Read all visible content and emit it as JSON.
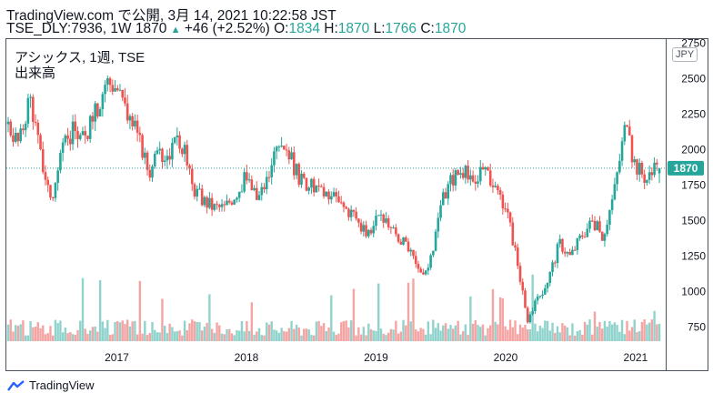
{
  "header": {
    "line1": "TradingView.com で公開, 3月 14, 2021 10:22:58 JST",
    "symbol": "TSE_DLY:7936, 1W",
    "last": "1870",
    "arrow": "▲",
    "change": "+46 (+2.52%)",
    "o_label": "O:",
    "o_value": "1834",
    "h_label": "H:",
    "h_value": "1870",
    "l_label": "L:",
    "l_value": "1766",
    "c_label": "C:",
    "c_value": "1870"
  },
  "legend": {
    "title": "アシックス, 1週, TSE",
    "volume_label": "出来高"
  },
  "currency": "JPY",
  "footer": {
    "brand": "TradingView"
  },
  "colors": {
    "up": "#26a69a",
    "down": "#ef5350",
    "vol_up": "#8fd3cc",
    "vol_down": "#f4a4a3",
    "price_line": "#26a69a"
  },
  "chart_data": {
    "type": "candlestick",
    "y_axis": {
      "ticks": [
        750,
        1000,
        1250,
        1500,
        1750,
        2000,
        2250,
        2500,
        2750
      ],
      "ylim": [
        600,
        2780
      ],
      "position": "right"
    },
    "x_axis": {
      "ticks": [
        "2017",
        "2018",
        "2019",
        "2020",
        "2021"
      ]
    },
    "last_price": 1870,
    "series": [
      {
        "name": "price",
        "anchors": [
          [
            "2016-03-01",
            2180
          ],
          [
            "2016-04-01",
            2050
          ],
          [
            "2016-05-01",
            2400
          ],
          [
            "2016-06-01",
            1950
          ],
          [
            "2016-07-01",
            1650
          ],
          [
            "2016-08-01",
            1990
          ],
          [
            "2016-09-01",
            2150
          ],
          [
            "2016-10-01",
            2070
          ],
          [
            "2016-11-01",
            2250
          ],
          [
            "2016-12-01",
            2500
          ],
          [
            "2017-01-01",
            2450
          ],
          [
            "2017-02-01",
            2250
          ],
          [
            "2017-03-01",
            2100
          ],
          [
            "2017-04-01",
            1850
          ],
          [
            "2017-05-01",
            1950
          ],
          [
            "2017-06-01",
            2000
          ],
          [
            "2017-07-01",
            2070
          ],
          [
            "2017-08-01",
            1750
          ],
          [
            "2017-09-01",
            1650
          ],
          [
            "2017-10-01",
            1600
          ],
          [
            "2017-11-01",
            1600
          ],
          [
            "2017-12-01",
            1700
          ],
          [
            "2018-01-01",
            1800
          ],
          [
            "2018-02-01",
            1650
          ],
          [
            "2018-03-01",
            1800
          ],
          [
            "2018-04-01",
            2000
          ],
          [
            "2018-05-01",
            1950
          ],
          [
            "2018-06-01",
            1800
          ],
          [
            "2018-07-01",
            1750
          ],
          [
            "2018-08-01",
            1680
          ],
          [
            "2018-09-01",
            1650
          ],
          [
            "2018-10-01",
            1600
          ],
          [
            "2018-11-01",
            1550
          ],
          [
            "2018-12-01",
            1400
          ],
          [
            "2019-01-01",
            1500
          ],
          [
            "2019-02-01",
            1500
          ],
          [
            "2019-03-01",
            1400
          ],
          [
            "2019-04-01",
            1300
          ],
          [
            "2019-05-01",
            1150
          ],
          [
            "2019-06-01",
            1180
          ],
          [
            "2019-07-01",
            1600
          ],
          [
            "2019-08-01",
            1800
          ],
          [
            "2019-09-01",
            1870
          ],
          [
            "2019-10-01",
            1750
          ],
          [
            "2019-11-01",
            1850
          ],
          [
            "2019-12-01",
            1700
          ],
          [
            "2020-01-01",
            1600
          ],
          [
            "2020-02-01",
            1250
          ],
          [
            "2020-03-01",
            800
          ],
          [
            "2020-04-01",
            950
          ],
          [
            "2020-05-01",
            1100
          ],
          [
            "2020-06-01",
            1350
          ],
          [
            "2020-07-01",
            1250
          ],
          [
            "2020-08-01",
            1400
          ],
          [
            "2020-09-01",
            1500
          ],
          [
            "2020-10-01",
            1400
          ],
          [
            "2020-11-01",
            1700
          ],
          [
            "2020-12-01",
            2150
          ],
          [
            "2021-01-01",
            1900
          ],
          [
            "2021-02-01",
            1800
          ],
          [
            "2021-03-01",
            1870
          ]
        ]
      },
      {
        "name": "volume",
        "relative": true
      }
    ]
  }
}
